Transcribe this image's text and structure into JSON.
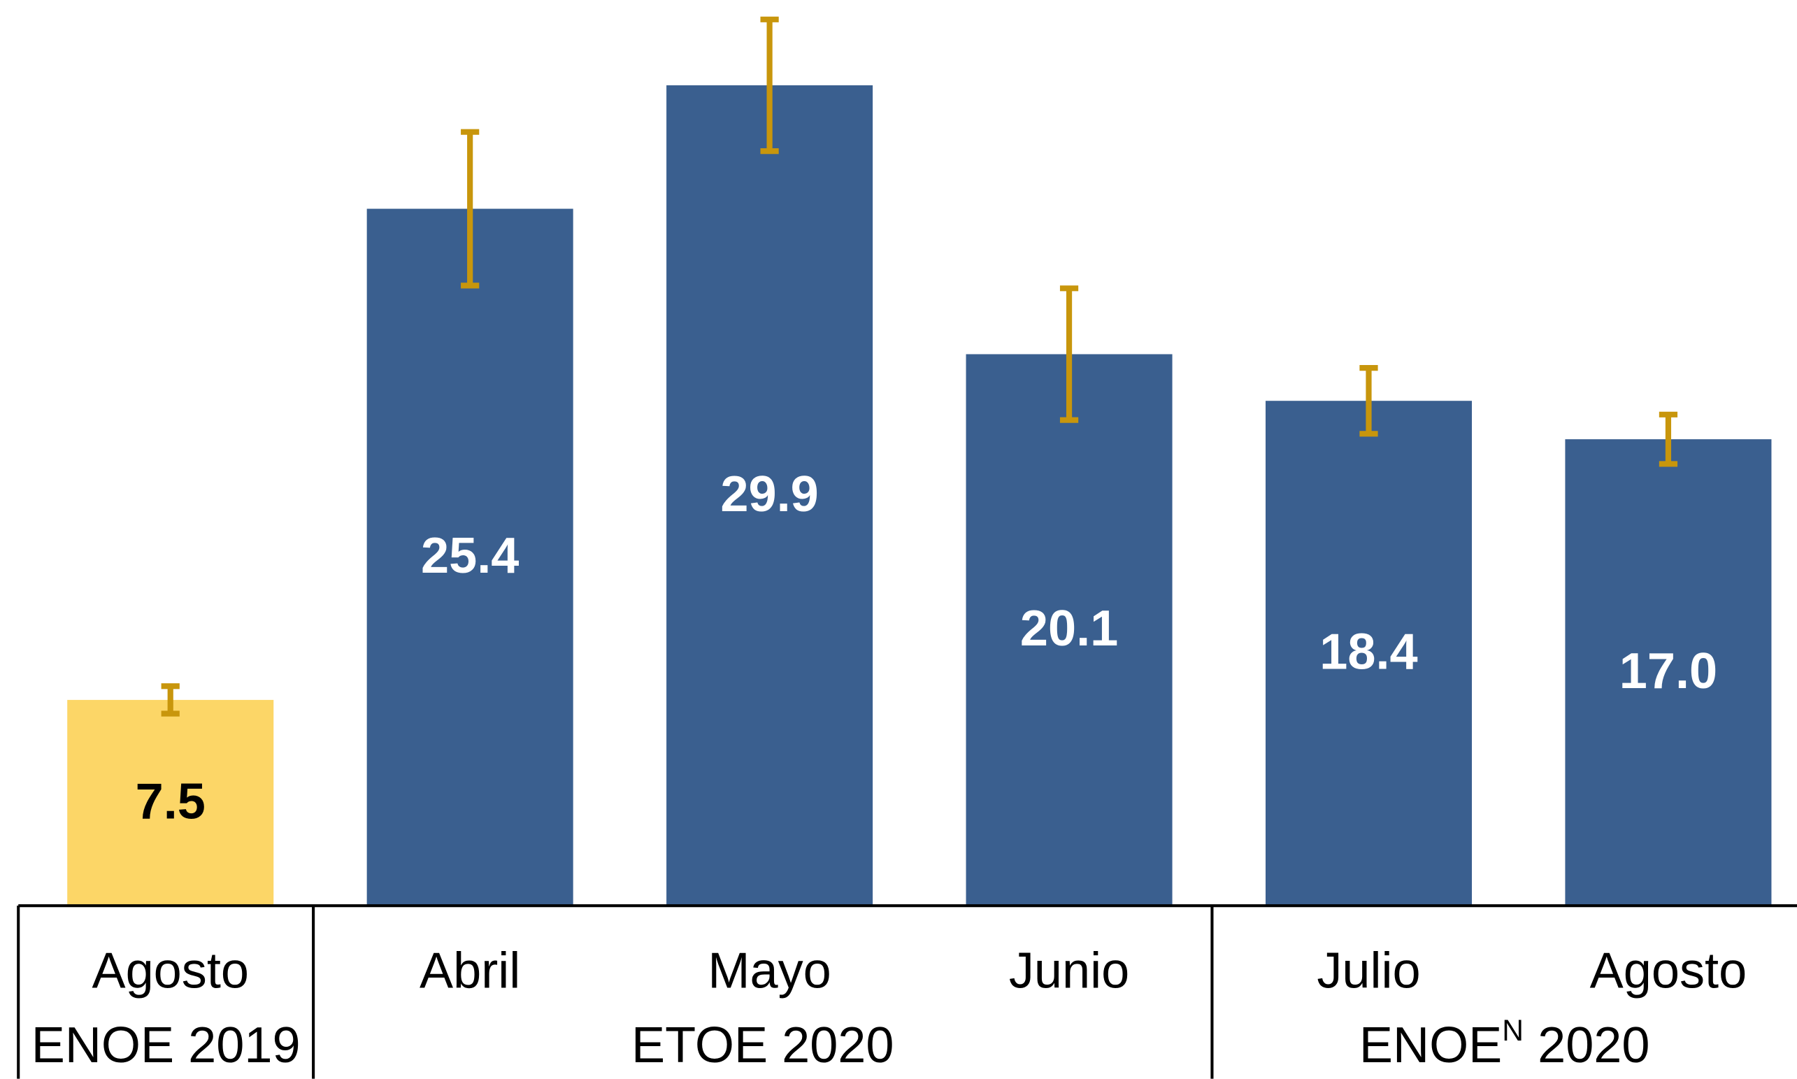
{
  "chart_data": {
    "type": "bar",
    "categories": [
      "Agosto",
      "Abril",
      "Mayo",
      "Junio",
      "Julio",
      "Agosto"
    ],
    "values": [
      7.5,
      25.4,
      29.9,
      20.1,
      18.4,
      17.0
    ],
    "value_labels": [
      "7.5",
      "25.4",
      "29.9",
      "20.1",
      "18.4",
      "17.0"
    ],
    "errors": [
      0.5,
      2.8,
      2.4,
      2.4,
      1.2,
      0.9
    ],
    "colors": [
      "#fcd667",
      "#3a5f8f",
      "#3a5f8f",
      "#3a5f8f",
      "#3a5f8f",
      "#3a5f8f"
    ],
    "label_colors": [
      "#000000",
      "#ffffff",
      "#ffffff",
      "#ffffff",
      "#ffffff",
      "#ffffff"
    ],
    "error_color": "#c8960c",
    "groups": [
      {
        "label_parts": [
          "ENOE 2019"
        ],
        "span": 1
      },
      {
        "label_parts": [
          "ETOE 2020"
        ],
        "span": 3
      },
      {
        "label_parts": [
          "ENOE",
          "N",
          " 2020"
        ],
        "span": 2
      }
    ],
    "ylim": [
      0,
      33
    ]
  }
}
